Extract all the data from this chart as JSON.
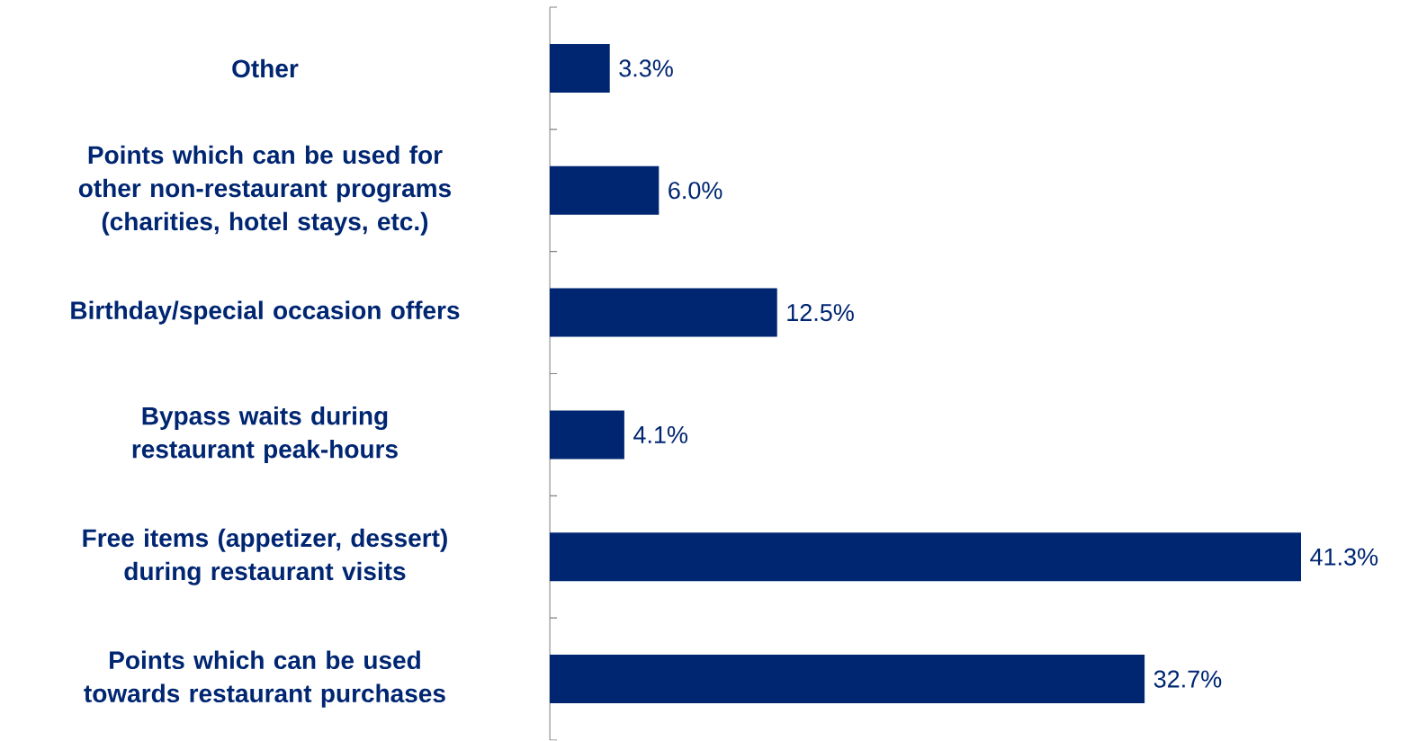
{
  "chart_data": {
    "type": "bar",
    "orientation": "horizontal",
    "categories": [
      "Other",
      "Points which can be used for other non-restaurant programs (charities, hotel stays, etc.)",
      "Birthday/special occasion offers",
      "Bypass waits during restaurant peak-hours",
      "Free items (appetizer, dessert) during restaurant visits",
      "Points which can be used towards restaurant purchases"
    ],
    "values": [
      3.3,
      6.0,
      12.5,
      4.1,
      41.3,
      32.7
    ],
    "value_labels": [
      "3.3%",
      "6.0%",
      "12.5%",
      "4.1%",
      "41.3%",
      "32.7%"
    ],
    "color": "#002672"
  }
}
